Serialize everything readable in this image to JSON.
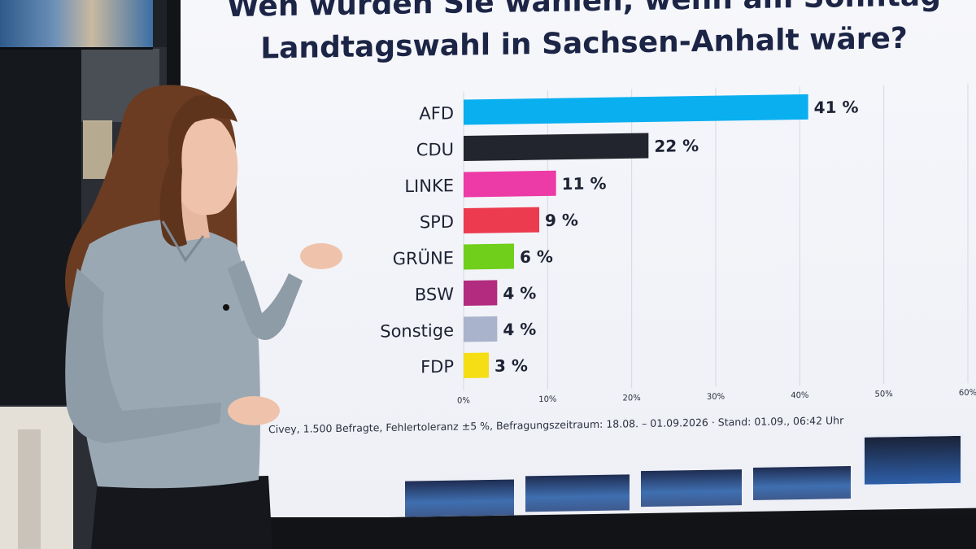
{
  "chart_data": {
    "type": "bar",
    "orientation": "horizontal",
    "title": "Wen würden Sie wählen, wenn am Sonntag Landtagswahl in Sachsen-Anhalt wäre?",
    "categories": [
      "AFD",
      "CDU",
      "LINKE",
      "SPD",
      "GRÜNE",
      "BSW",
      "Sonstige",
      "FDP"
    ],
    "values": [
      41,
      22,
      11,
      9,
      6,
      4,
      4,
      3
    ],
    "value_labels": [
      "41 %",
      "22 %",
      "11 %",
      "9 %",
      "6 %",
      "4 %",
      "4 %",
      "3 %"
    ],
    "colors": [
      "#0aaff0",
      "#22252d",
      "#ec3aa6",
      "#ec3b4f",
      "#6fcf1a",
      "#b22b7e",
      "#a9b3cc",
      "#f6de15"
    ],
    "x_ticks": [
      "0%",
      "10%",
      "20%",
      "30%",
      "40%",
      "50%",
      "60%"
    ],
    "xlim": [
      0,
      60
    ],
    "grid": true,
    "source": "Civey, 1.500 Befragte, Fehlertoleranz ±5 %, Befragungszeitraum: 18.08. – 01.09.2026 · Stand: 01.09., 06:42 Uhr"
  }
}
